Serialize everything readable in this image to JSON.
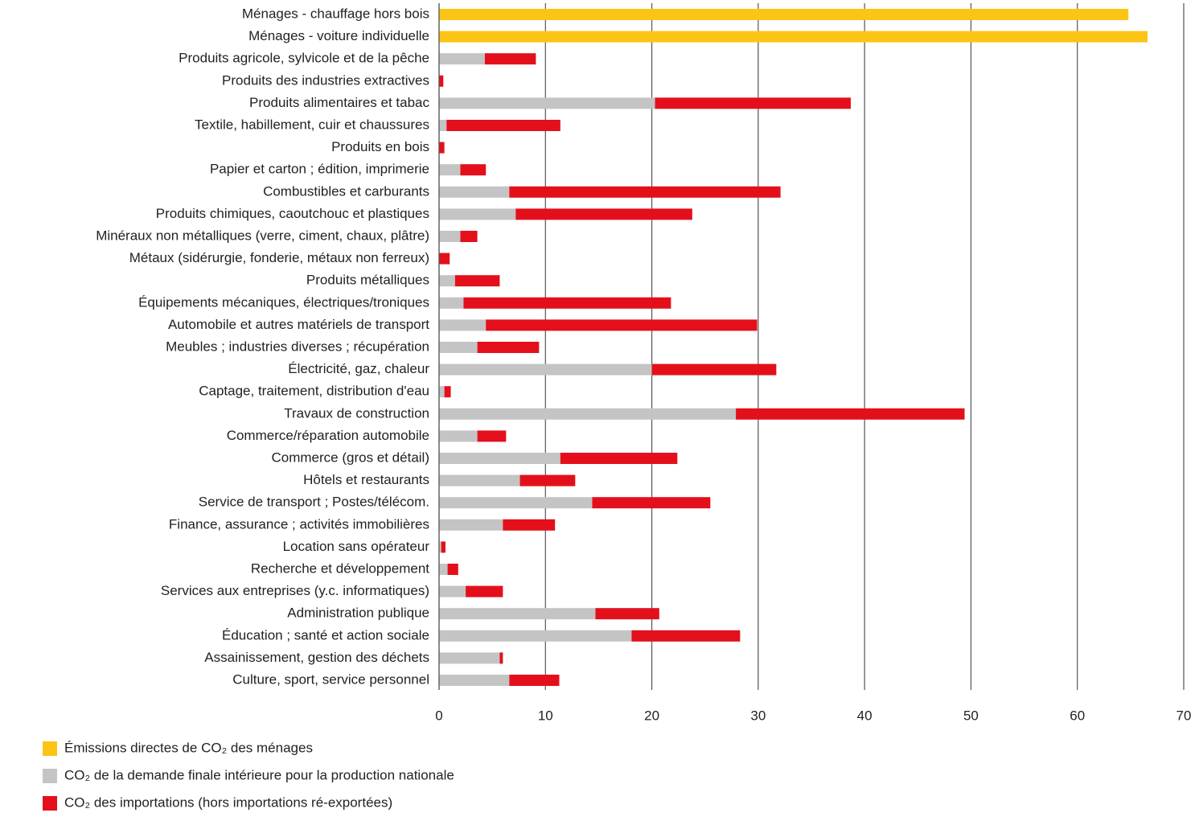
{
  "chart_data": {
    "type": "stacked-bar-horizontal",
    "categories": [
      "Ménages - chauffage hors bois",
      "Ménages - voiture individuelle",
      "Produits agricole, sylvicole et de la pêche",
      "Produits des industries extractives",
      "Produits alimentaires et tabac",
      "Textile, habillement, cuir et chaussures",
      "Produits en bois",
      "Papier et carton ;  édition, imprimerie",
      "Combustibles et carburants",
      "Produits chimiques, caoutchouc et plastiques",
      "Minéraux non métalliques (verre, ciment, chaux, plâtre)",
      "Métaux (sidérurgie, fonderie, métaux non ferreux)",
      "Produits métalliques",
      "Équipements mécaniques, électriques/troniques",
      "Automobile et autres matériels de transport",
      "Meubles ; industries diverses ; récupération",
      "Électricité, gaz, chaleur",
      "Captage, traitement, distribution d'eau",
      "Travaux de construction",
      "Commerce/réparation automobile",
      "Commerce (gros et détail)",
      "Hôtels et restaurants",
      "Service de transport ; Postes/télécom.",
      "Finance, assurance ; activités immobilières",
      "Location sans opérateur",
      "Recherche et développement",
      "Services aux entreprises (y.c. informatiques)",
      "Administration publique",
      "Éducation ; santé et action sociale",
      "Assainissement, gestion des déchets",
      "Culture, sport, service personnel"
    ],
    "series": [
      {
        "name": "Émissions directes de CO₂ des ménages",
        "color": "#fcc414",
        "values": [
          64.8,
          66.6,
          null,
          null,
          null,
          null,
          null,
          null,
          null,
          null,
          null,
          null,
          null,
          null,
          null,
          null,
          null,
          null,
          null,
          null,
          null,
          null,
          null,
          null,
          null,
          null,
          null,
          null,
          null,
          null,
          null
        ]
      },
      {
        "name": "CO₂ de la demande finale intérieure pour la production nationale",
        "color": "#c4c4c4",
        "values": [
          null,
          null,
          4.3,
          0,
          20.3,
          0.7,
          0,
          2.0,
          6.6,
          7.2,
          2.0,
          0,
          1.5,
          2.3,
          4.4,
          3.6,
          20.0,
          0.5,
          27.9,
          3.6,
          11.4,
          7.6,
          14.4,
          6.0,
          0.2,
          0.8,
          2.5,
          14.7,
          18.1,
          5.7,
          6.6
        ]
      },
      {
        "name": "CO₂ des importations (hors importations ré-exportées)",
        "color": "#e3101b",
        "values": [
          null,
          null,
          4.8,
          0.4,
          18.4,
          10.7,
          0.5,
          2.4,
          25.5,
          16.6,
          1.6,
          1.0,
          4.2,
          19.5,
          25.5,
          5.8,
          11.7,
          0.6,
          21.5,
          2.7,
          11.0,
          5.2,
          11.1,
          4.9,
          0.4,
          1.0,
          3.5,
          6.0,
          10.2,
          0.3,
          4.7
        ]
      }
    ],
    "xlim": [
      0,
      70
    ],
    "xticks": [
      0,
      10,
      20,
      30,
      40,
      50,
      60,
      70
    ],
    "grid": true
  }
}
